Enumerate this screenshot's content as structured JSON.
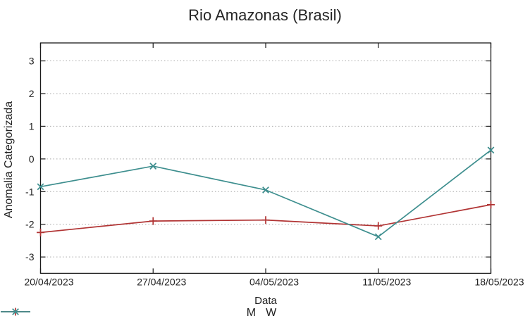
{
  "chart_data": {
    "type": "line",
    "title": "Rio Amazonas (Brasil)",
    "xlabel": "Data",
    "ylabel": "Anomalia Categorizada",
    "categories": [
      "20/04/2023",
      "27/04/2023",
      "04/05/2023",
      "11/05/2023",
      "18/05/2023"
    ],
    "yticks": [
      -3,
      -2,
      -1,
      0,
      1,
      2,
      3
    ],
    "ylim": [
      -3.5,
      3.55
    ],
    "grid": {
      "horizontal_dotted": true,
      "color": "#a8a8a8"
    },
    "legend_position": "bottom-center",
    "axis_color": "#1a1a1a",
    "text_color": "#1f1f1f",
    "series": [
      {
        "name": "M",
        "color": "#b13434",
        "marker": "plus",
        "values": [
          -2.25,
          -1.9,
          -1.87,
          -2.05,
          -1.4
        ]
      },
      {
        "name": "W",
        "color": "#3d8e8e",
        "marker": "cross",
        "values": [
          -0.85,
          -0.22,
          -0.95,
          -2.38,
          0.27
        ]
      }
    ]
  }
}
